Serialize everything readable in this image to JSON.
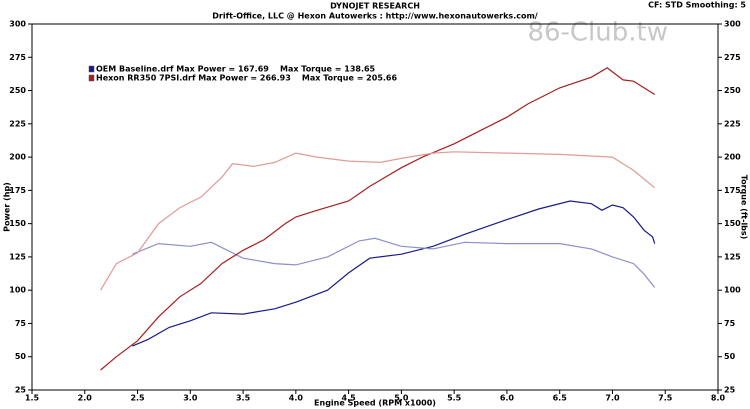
{
  "chart_data": {
    "type": "line",
    "title": "DYNOJET RESEARCH",
    "subtitle": "Drift-Office, LLC @ Hexon Autowerks : http://www.hexonautowerks.com/",
    "settings_text": "CF: STD  Smoothing: 5",
    "watermark": "86-Club.tw",
    "x_label": "Engine Speed (RPM x1000)",
    "y_label": "Power (hp)",
    "y2_label": "Torque (ft-lbs)",
    "xlim": [
      1.5,
      8.0
    ],
    "xticks": [
      {
        "value": 1.5,
        "label": "1.5"
      },
      {
        "value": 2,
        "label": "2.0"
      },
      {
        "value": 2.5,
        "label": "2.5"
      },
      {
        "value": 3,
        "label": "3.0"
      },
      {
        "value": 3.5,
        "label": "3.5"
      },
      {
        "value": 4,
        "label": "4.0"
      },
      {
        "value": 4.5,
        "label": "4.5"
      },
      {
        "value": 5,
        "label": "5.0"
      },
      {
        "value": 5.5,
        "label": "5.5"
      },
      {
        "value": 6,
        "label": "6.0"
      },
      {
        "value": 6.5,
        "label": "6.5"
      },
      {
        "value": 7,
        "label": "7.0"
      },
      {
        "value": 7.5,
        "label": "7.5"
      },
      {
        "value": 8,
        "label": "8.0"
      }
    ],
    "ylim": [
      25,
      300
    ],
    "yticks": [
      25,
      50,
      75,
      100,
      125,
      150,
      175,
      200,
      225,
      250,
      275,
      300
    ],
    "y2lim": [
      25,
      300
    ],
    "y2ticks": [
      25,
      50,
      75,
      100,
      125,
      150,
      175,
      200,
      225,
      250,
      275,
      300
    ],
    "grid": false,
    "series": [
      {
        "name": "OEM Baseline.drf Max Power = 167.69    Max Torque = 138.65",
        "color": "#1a1a8c",
        "x": [
          2.45,
          2.6,
          2.8,
          3.0,
          3.2,
          3.5,
          3.8,
          4.0,
          4.3,
          4.5,
          4.7,
          5.0,
          5.3,
          5.6,
          6.0,
          6.3,
          6.6,
          6.8,
          6.9,
          7.0,
          7.1,
          7.2,
          7.3,
          7.38,
          7.4
        ],
        "values": [
          58,
          63,
          72,
          77,
          83,
          82,
          86,
          91,
          100,
          113,
          124,
          127,
          133,
          142,
          153,
          161,
          167,
          165,
          160,
          164,
          162,
          155,
          145,
          140,
          135
        ]
      },
      {
        "color": "#8e8ecc",
        "axis": "y2",
        "x": [
          2.45,
          2.7,
          3.0,
          3.2,
          3.5,
          3.8,
          4.0,
          4.3,
          4.6,
          4.75,
          5.0,
          5.3,
          5.6,
          6.0,
          6.5,
          6.8,
          7.0,
          7.2,
          7.3,
          7.4
        ],
        "values": [
          127,
          135,
          133,
          136,
          124,
          120,
          119,
          125,
          137,
          139,
          133,
          131,
          136,
          135,
          135,
          131,
          125,
          120,
          112,
          102
        ]
      },
      {
        "name": "Hexon RR350 7PSI.drf Max Power = 266.93    Max Torque = 205.66",
        "color": "#a3201e",
        "x": [
          2.15,
          2.3,
          2.5,
          2.7,
          2.9,
          3.1,
          3.3,
          3.5,
          3.7,
          3.9,
          4.0,
          4.2,
          4.5,
          4.7,
          5.0,
          5.2,
          5.5,
          5.8,
          6.0,
          6.2,
          6.5,
          6.8,
          6.95,
          7.1,
          7.2,
          7.3,
          7.4
        ],
        "values": [
          40,
          50,
          62,
          80,
          95,
          105,
          120,
          130,
          138,
          150,
          155,
          160,
          167,
          178,
          192,
          200,
          210,
          222,
          230,
          240,
          252,
          260,
          267,
          258,
          257,
          252,
          247
        ]
      },
      {
        "color": "#e09a98",
        "axis": "y2",
        "x": [
          2.15,
          2.3,
          2.5,
          2.7,
          2.9,
          3.1,
          3.3,
          3.4,
          3.6,
          3.8,
          4.0,
          4.2,
          4.5,
          4.8,
          5.0,
          5.3,
          5.5,
          6.0,
          6.5,
          7.0,
          7.1,
          7.2,
          7.4
        ],
        "values": [
          100,
          120,
          128,
          150,
          162,
          170,
          185,
          195,
          193,
          196,
          203,
          200,
          197,
          196,
          199,
          203,
          204,
          203,
          202,
          200,
          195,
          190,
          177
        ]
      }
    ]
  }
}
